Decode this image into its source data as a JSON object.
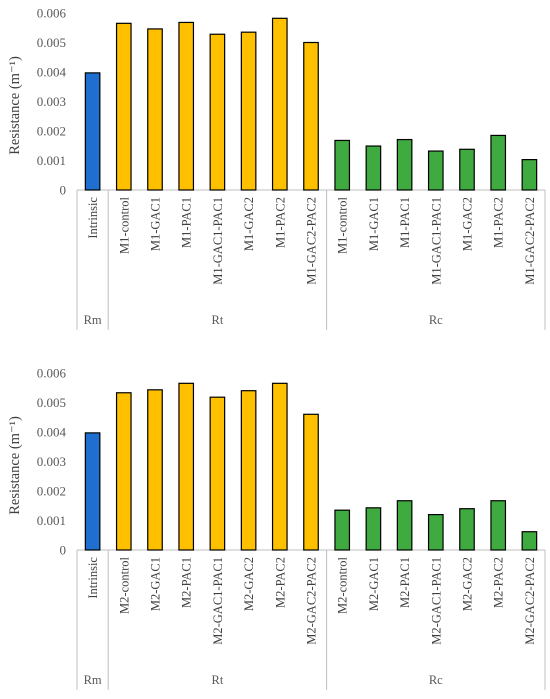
{
  "colors": {
    "Rm": "#1f6fd0",
    "Rt": "#ffc000",
    "Rc": "#3faa3f",
    "outline": "#000000"
  },
  "chart_data": [
    {
      "type": "bar",
      "ylabel": "Resistance (m⁻¹)",
      "ylim": [
        0,
        0.006
      ],
      "yticks": [
        "0",
        "0.001",
        "0.002",
        "0.003",
        "0.004",
        "0.005",
        "0.006"
      ],
      "categories": [
        "Intrinsic",
        "M1-control",
        "M1-GAC1",
        "M1-PAC1",
        "M1-GAC1-PAC1",
        "M1-GAC2",
        "M1-PAC2",
        "M1-GAC2-PAC2",
        "M1-control",
        "M1-GAC1",
        "M1-PAC1",
        "M1-GAC1-PAC1",
        "M1-GAC2",
        "M1-PAC2",
        "M1-GAC2-PAC2"
      ],
      "values": [
        0.00397,
        0.00565,
        0.00546,
        0.00568,
        0.00528,
        0.00535,
        0.00582,
        0.005,
        0.00168,
        0.00149,
        0.00171,
        0.00132,
        0.00138,
        0.00185,
        0.00103
      ],
      "groups": [
        {
          "name": "Rm",
          "start": 0,
          "count": 1
        },
        {
          "name": "Rt",
          "start": 1,
          "count": 7
        },
        {
          "name": "Rc",
          "start": 8,
          "count": 7
        }
      ],
      "grid": false,
      "legend": "none"
    },
    {
      "type": "bar",
      "ylabel": "Resistance (m⁻¹)",
      "ylim": [
        0,
        0.006
      ],
      "yticks": [
        "0",
        "0.001",
        "0.002",
        "0.003",
        "0.004",
        "0.005",
        "0.006"
      ],
      "categories": [
        "Intrinsic",
        "M2-control",
        "M2-GAC1",
        "M2-PAC1",
        "M2-GAC1-PAC1",
        "M2-GAC2",
        "M2-PAC2",
        "M2-GAC2-PAC2",
        "M2-control",
        "M2-GAC1",
        "M2-PAC1",
        "M2-GAC1-PAC1",
        "M2-GAC2",
        "M2-PAC2",
        "M2-GAC2-PAC2"
      ],
      "values": [
        0.00397,
        0.00533,
        0.00543,
        0.00565,
        0.00518,
        0.0054,
        0.00565,
        0.0046,
        0.00135,
        0.00143,
        0.00167,
        0.0012,
        0.0014,
        0.00167,
        0.00062
      ],
      "groups": [
        {
          "name": "Rm",
          "start": 0,
          "count": 1
        },
        {
          "name": "Rt",
          "start": 1,
          "count": 7
        },
        {
          "name": "Rc",
          "start": 8,
          "count": 7
        }
      ],
      "grid": false,
      "legend": "none"
    }
  ]
}
